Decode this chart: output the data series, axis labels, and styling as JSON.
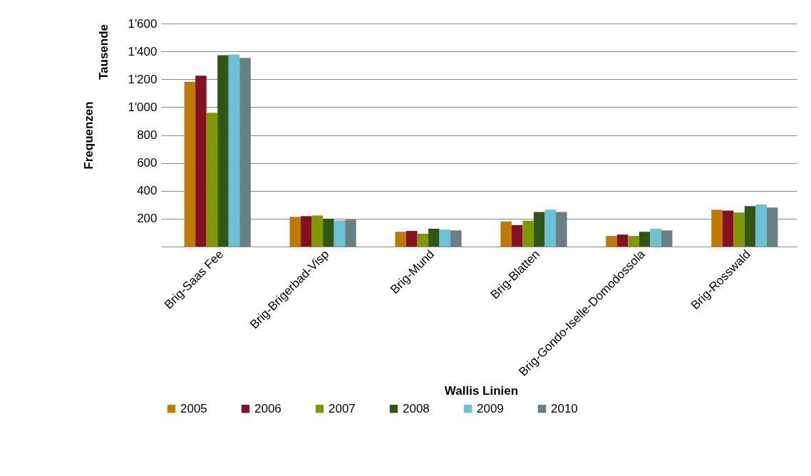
{
  "chart_data": {
    "type": "bar",
    "xlabel": "Wallis Linien",
    "ylabel": "Frequenzen",
    "annotations": [
      "Tausende"
    ],
    "categories": [
      "Brig-Saas Fee",
      "Brig-Brigerbad-Visp",
      "Brig-Mund",
      "Brig-Blatten",
      "Brig-Gondo-Iselle-Domodossola",
      "Brig-Rosswald"
    ],
    "series": [
      {
        "name": "2005",
        "color": "#c07a00",
        "values": [
          1182,
          213,
          106,
          180,
          76,
          264
        ]
      },
      {
        "name": "2006",
        "color": "#83111f",
        "values": [
          1225,
          218,
          112,
          154,
          86,
          258
        ]
      },
      {
        "name": "2007",
        "color": "#7f9a00",
        "values": [
          960,
          223,
          92,
          186,
          76,
          244
        ]
      },
      {
        "name": "2008",
        "color": "#2f5614",
        "values": [
          1373,
          200,
          128,
          248,
          106,
          290
        ]
      },
      {
        "name": "2009",
        "color": "#69c2d8",
        "values": [
          1378,
          188,
          122,
          264,
          128,
          302
        ]
      },
      {
        "name": "2010",
        "color": "#688084",
        "values": [
          1353,
          193,
          116,
          248,
          116,
          280
        ]
      }
    ],
    "ylim": [
      0,
      1600
    ],
    "yticks": [
      {
        "value": 0,
        "label": null
      },
      200,
      400,
      600,
      800,
      {
        "value": 1000,
        "label": "1'000"
      },
      {
        "value": 1200,
        "label": "1'200"
      },
      {
        "value": 1400,
        "label": "1'400"
      },
      {
        "value": 1600,
        "label": "1'600"
      }
    ],
    "grid": "y",
    "legend": "bottom"
  }
}
